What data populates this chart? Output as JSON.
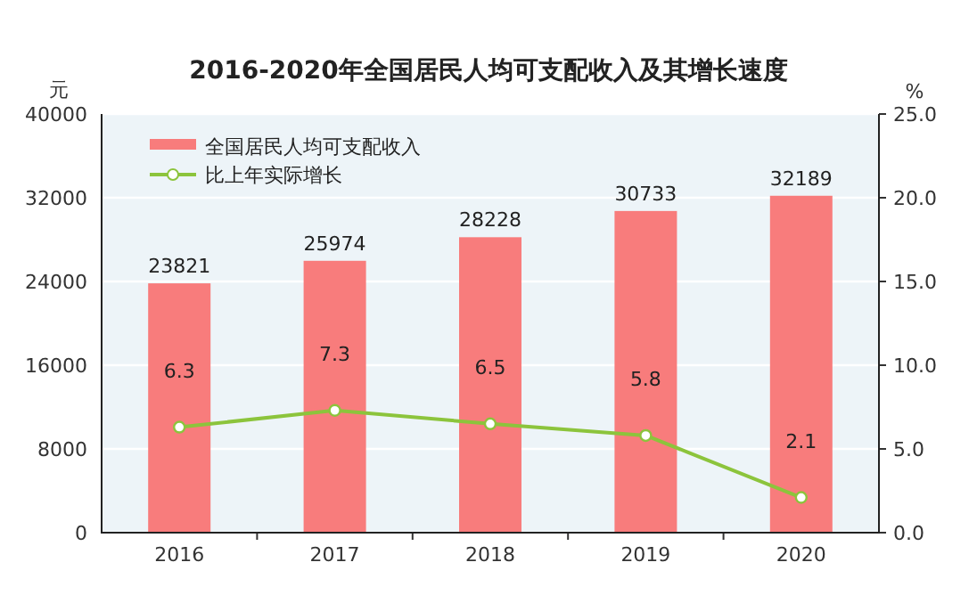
{
  "chart_data": {
    "type": "bar",
    "title": "2016-2020年全国居民人均可支配收入及其增长速度",
    "ylabel": "元",
    "y2label": "%",
    "categories": [
      "2016",
      "2017",
      "2018",
      "2019",
      "2020"
    ],
    "series": [
      {
        "name": "全国居民人均可支配收入",
        "color": "#f87c7c",
        "values": [
          23821,
          25974,
          28228,
          30733,
          32189
        ]
      },
      {
        "name": "比上年实际增长",
        "type": "line",
        "axis": "y2",
        "color": "#8cc43c",
        "marker": "circle",
        "values": [
          6.3,
          7.3,
          6.5,
          5.8,
          2.1
        ]
      }
    ],
    "ylim": [
      0,
      40000
    ],
    "yticks": [
      0,
      8000,
      16000,
      24000,
      32000,
      40000
    ],
    "y2lim": [
      0,
      25
    ],
    "y2ticks": [
      {
        "value": 0,
        "label": "0.0"
      },
      {
        "value": 5,
        "label": "5.0"
      },
      {
        "value": 10,
        "label": "10.0"
      },
      {
        "value": 15,
        "label": "15.0"
      },
      {
        "value": 20,
        "label": "20.0"
      },
      {
        "value": 25,
        "label": "25.0"
      }
    ],
    "grid": "y",
    "legend": "top left",
    "data_labels": true
  }
}
